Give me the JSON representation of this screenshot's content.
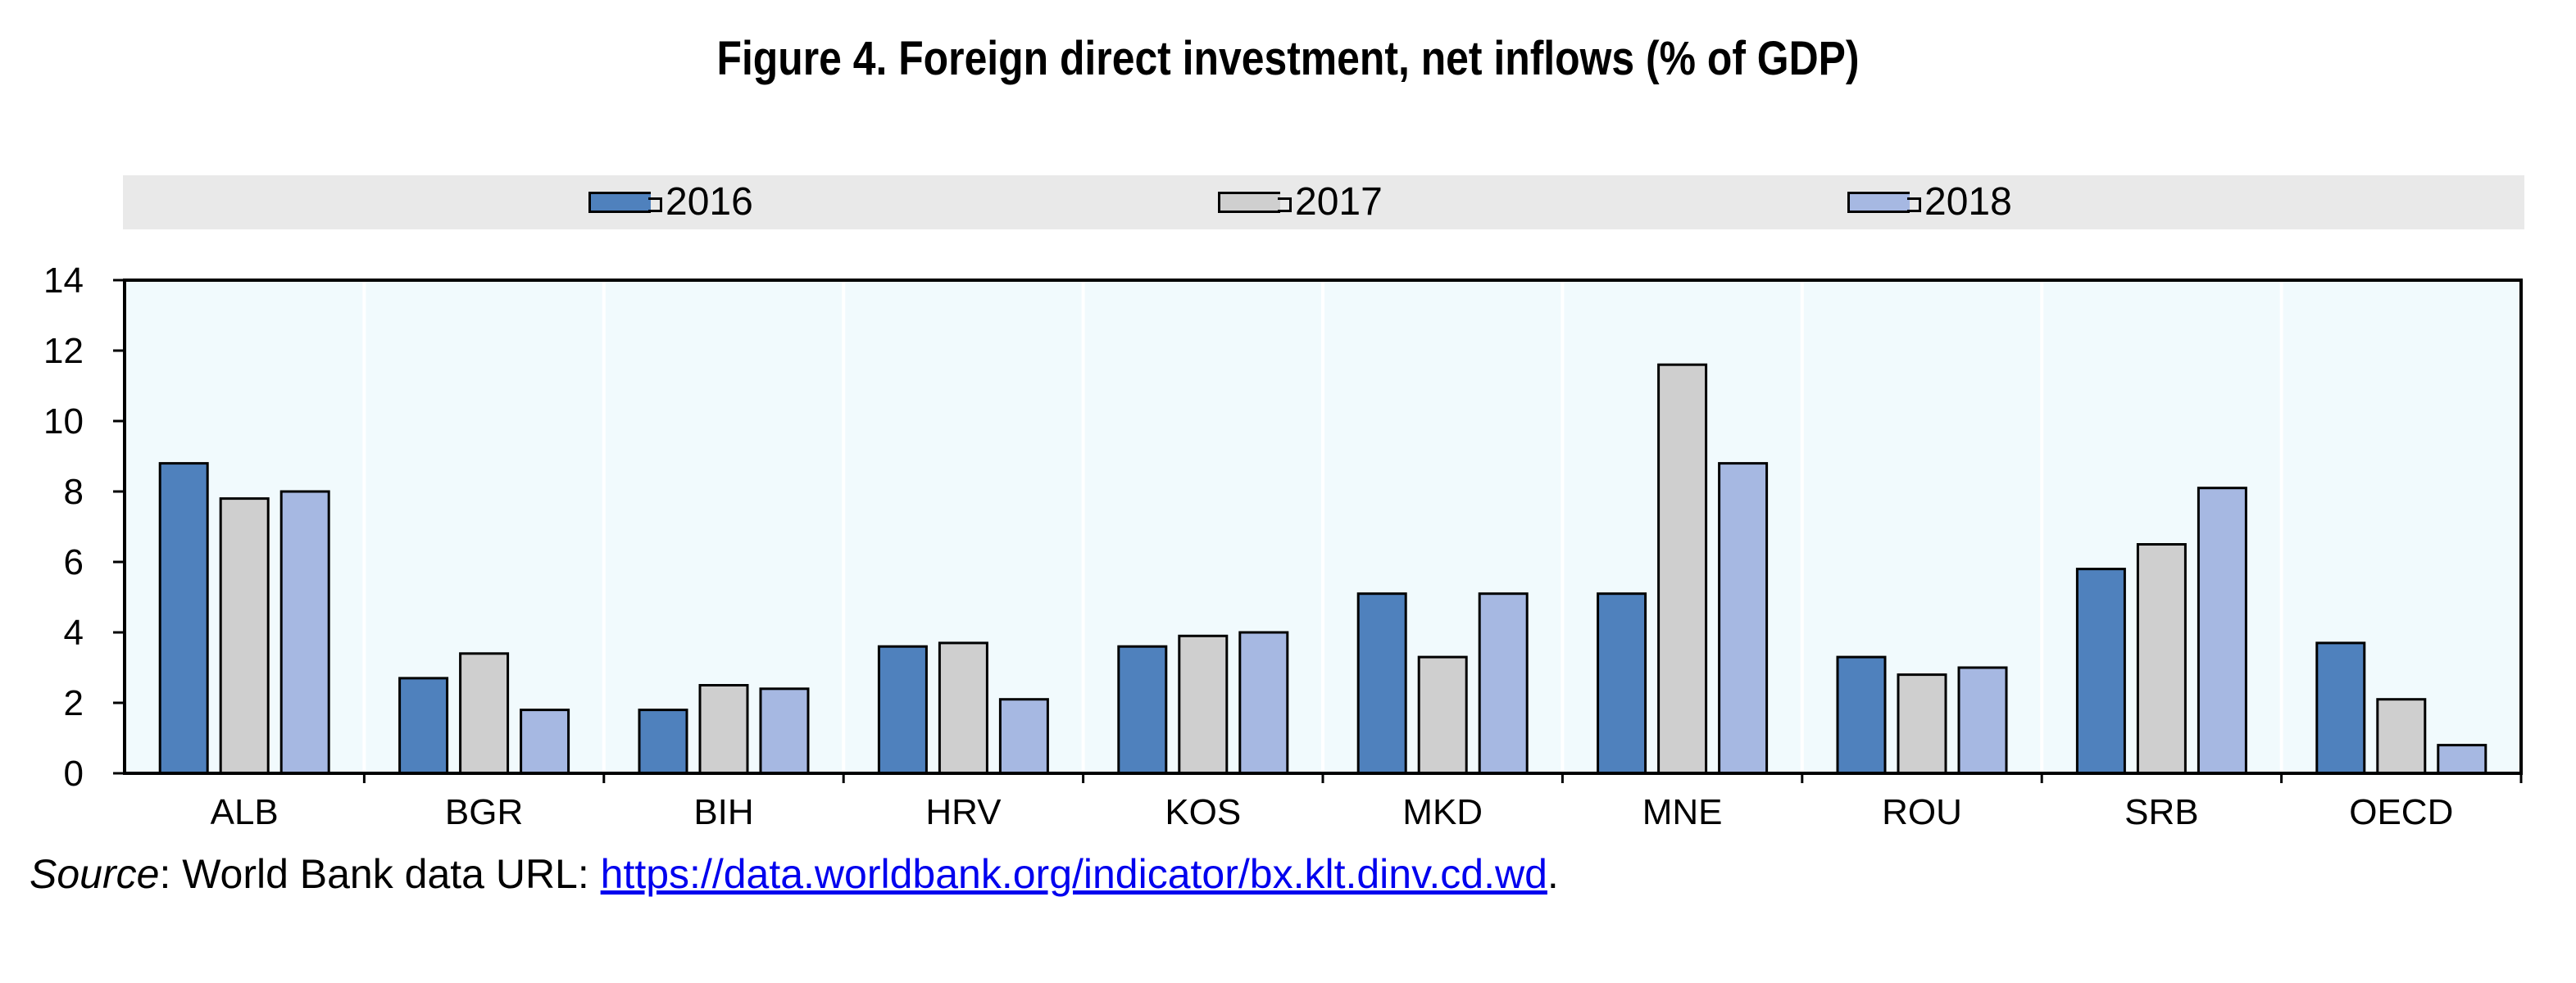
{
  "title": "Figure 4. Foreign direct investment, net inflows (% of GDP)",
  "legend": [
    {
      "label": "2016",
      "color": "#4f81bd"
    },
    {
      "label": "2017",
      "color": "#cfcfcf"
    },
    {
      "label": "2018",
      "color": "#a6b8e2"
    }
  ],
  "chart_data": {
    "type": "bar",
    "title": "Figure 4. Foreign direct investment, net inflows (% of GDP)",
    "xlabel": "",
    "ylabel": "",
    "categories": [
      "ALB",
      "BGR",
      "BIH",
      "HRV",
      "KOS",
      "MKD",
      "MNE",
      "ROU",
      "SRB",
      "OECD"
    ],
    "series": [
      {
        "name": "2016",
        "color": "#4f81bd",
        "values": [
          8.8,
          2.7,
          1.8,
          3.6,
          3.6,
          5.1,
          5.1,
          3.3,
          5.8,
          3.7
        ]
      },
      {
        "name": "2017",
        "color": "#cfcfcf",
        "values": [
          7.8,
          3.4,
          2.5,
          3.7,
          3.9,
          3.3,
          11.6,
          2.8,
          6.5,
          2.1
        ]
      },
      {
        "name": "2018",
        "color": "#a6b8e2",
        "values": [
          8.0,
          1.8,
          2.4,
          2.1,
          4.0,
          5.1,
          8.8,
          3.0,
          8.1,
          0.8
        ]
      }
    ],
    "ylim": [
      0,
      14
    ],
    "yticks": [
      0,
      2,
      4,
      6,
      8,
      10,
      12,
      14
    ],
    "grid": "vertical separators between categories",
    "legend_position": "top",
    "plot_background": "#f1fafd"
  },
  "source": {
    "label": "Source",
    "text": ": World Bank data URL: ",
    "url_text": "https://data.worldbank.org/indicator/bx.klt.dinv.cd.wd",
    "trailing": "."
  }
}
